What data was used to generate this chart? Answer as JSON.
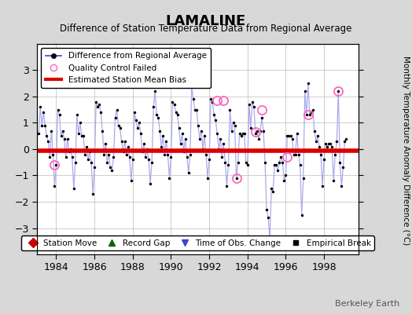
{
  "title": "LAMALINE",
  "subtitle": "Difference of Station Temperature Data from Regional Average",
  "ylabel_right": "Monthly Temperature Anomaly Difference (°C)",
  "ylim": [
    -4,
    4
  ],
  "xlim": [
    1983.0,
    1999.8
  ],
  "xticks": [
    1984,
    1986,
    1988,
    1990,
    1992,
    1994,
    1996,
    1998
  ],
  "yticks": [
    -3,
    -2,
    -1,
    0,
    1,
    2,
    3
  ],
  "bias_level": -0.05,
  "watermark": "Berkeley Earth",
  "line_color": "#4444cc",
  "line_color_light": "#aaaaee",
  "marker_color": "#000000",
  "bias_color": "#dd0000",
  "qc_color": "#ff66bb",
  "background_color": "#d8d8d8",
  "plot_background": "#ffffff",
  "grid_color": "#bbbbbb",
  "time_series": [
    [
      1983.0833,
      0.6
    ],
    [
      1983.1667,
      1.6
    ],
    [
      1983.25,
      0.9
    ],
    [
      1983.3333,
      1.4
    ],
    [
      1983.4167,
      0.9
    ],
    [
      1983.5,
      0.5
    ],
    [
      1983.5833,
      0.3
    ],
    [
      1983.6667,
      -0.3
    ],
    [
      1983.75,
      0.7
    ],
    [
      1983.8333,
      -0.2
    ],
    [
      1983.9167,
      -1.4
    ],
    [
      1984.0,
      -0.6
    ],
    [
      1984.0833,
      1.5
    ],
    [
      1984.1667,
      1.3
    ],
    [
      1984.25,
      0.5
    ],
    [
      1984.3333,
      0.7
    ],
    [
      1984.4167,
      0.4
    ],
    [
      1984.5,
      -0.3
    ],
    [
      1984.5833,
      0.4
    ],
    [
      1984.6667,
      -0.1
    ],
    [
      1984.75,
      0.0
    ],
    [
      1984.8333,
      -0.3
    ],
    [
      1984.9167,
      -1.5
    ],
    [
      1985.0,
      -0.5
    ],
    [
      1985.0833,
      1.3
    ],
    [
      1985.1667,
      0.6
    ],
    [
      1985.25,
      1.0
    ],
    [
      1985.3333,
      0.5
    ],
    [
      1985.4167,
      0.5
    ],
    [
      1985.5,
      -0.2
    ],
    [
      1985.5833,
      0.1
    ],
    [
      1985.6667,
      -0.4
    ],
    [
      1985.75,
      -0.1
    ],
    [
      1985.8333,
      -0.5
    ],
    [
      1985.9167,
      -1.7
    ],
    [
      1986.0,
      -0.7
    ],
    [
      1986.0833,
      1.8
    ],
    [
      1986.1667,
      1.6
    ],
    [
      1986.25,
      1.7
    ],
    [
      1986.3333,
      1.4
    ],
    [
      1986.4167,
      0.7
    ],
    [
      1986.5,
      -0.2
    ],
    [
      1986.5833,
      0.2
    ],
    [
      1986.6667,
      -0.5
    ],
    [
      1986.75,
      -0.2
    ],
    [
      1986.8333,
      -0.7
    ],
    [
      1986.9167,
      -0.8
    ],
    [
      1987.0,
      -0.3
    ],
    [
      1987.0833,
      1.2
    ],
    [
      1987.1667,
      1.5
    ],
    [
      1987.25,
      0.9
    ],
    [
      1987.3333,
      0.8
    ],
    [
      1987.4167,
      0.3
    ],
    [
      1987.5,
      -0.1
    ],
    [
      1987.5833,
      0.3
    ],
    [
      1987.6667,
      -0.2
    ],
    [
      1987.75,
      0.1
    ],
    [
      1987.8333,
      -0.3
    ],
    [
      1987.9167,
      -1.2
    ],
    [
      1988.0,
      -0.4
    ],
    [
      1988.0833,
      1.4
    ],
    [
      1988.1667,
      1.1
    ],
    [
      1988.25,
      0.8
    ],
    [
      1988.3333,
      1.0
    ],
    [
      1988.4167,
      0.6
    ],
    [
      1988.5,
      -0.1
    ],
    [
      1988.5833,
      0.2
    ],
    [
      1988.6667,
      -0.3
    ],
    [
      1988.75,
      0.0
    ],
    [
      1988.8333,
      -0.4
    ],
    [
      1988.9167,
      -1.3
    ],
    [
      1989.0,
      -0.5
    ],
    [
      1989.0833,
      1.6
    ],
    [
      1989.1667,
      2.2
    ],
    [
      1989.25,
      1.3
    ],
    [
      1989.3333,
      1.2
    ],
    [
      1989.4167,
      0.7
    ],
    [
      1989.5,
      0.1
    ],
    [
      1989.5833,
      0.5
    ],
    [
      1989.6667,
      -0.2
    ],
    [
      1989.75,
      0.3
    ],
    [
      1989.8333,
      -0.2
    ],
    [
      1989.9167,
      -1.1
    ],
    [
      1990.0,
      -0.3
    ],
    [
      1990.0833,
      1.8
    ],
    [
      1990.1667,
      1.7
    ],
    [
      1990.25,
      1.4
    ],
    [
      1990.3333,
      1.3
    ],
    [
      1990.4167,
      0.8
    ],
    [
      1990.5,
      0.2
    ],
    [
      1990.5833,
      0.6
    ],
    [
      1990.6667,
      -0.1
    ],
    [
      1990.75,
      0.4
    ],
    [
      1990.8333,
      -0.3
    ],
    [
      1990.9167,
      -0.9
    ],
    [
      1991.0,
      -0.2
    ],
    [
      1991.0833,
      2.4
    ],
    [
      1991.1667,
      1.9
    ],
    [
      1991.25,
      1.5
    ],
    [
      1991.3333,
      1.5
    ],
    [
      1991.4167,
      0.9
    ],
    [
      1991.5,
      0.4
    ],
    [
      1991.5833,
      0.7
    ],
    [
      1991.6667,
      0.0
    ],
    [
      1991.75,
      0.5
    ],
    [
      1991.8333,
      -0.2
    ],
    [
      1991.9167,
      -1.1
    ],
    [
      1992.0,
      -0.4
    ],
    [
      1992.0833,
      1.9
    ],
    [
      1992.1667,
      1.8
    ],
    [
      1992.25,
      1.3
    ],
    [
      1992.3333,
      1.1
    ],
    [
      1992.4167,
      0.6
    ],
    [
      1992.5,
      0.0
    ],
    [
      1992.5833,
      0.4
    ],
    [
      1992.6667,
      -0.3
    ],
    [
      1992.75,
      0.2
    ],
    [
      1992.8333,
      -0.5
    ],
    [
      1992.9167,
      -1.4
    ],
    [
      1993.0,
      -0.6
    ],
    [
      1993.0833,
      1.5
    ],
    [
      1993.1667,
      0.7
    ],
    [
      1993.25,
      1.0
    ],
    [
      1993.3333,
      0.9
    ],
    [
      1993.4167,
      -1.1
    ],
    [
      1993.5,
      -0.5
    ],
    [
      1993.5833,
      0.6
    ],
    [
      1993.6667,
      0.5
    ],
    [
      1993.75,
      0.6
    ],
    [
      1993.8333,
      0.6
    ],
    [
      1993.9167,
      -0.5
    ],
    [
      1994.0,
      -0.6
    ],
    [
      1994.0833,
      1.7
    ],
    [
      1994.1667,
      0.8
    ],
    [
      1994.25,
      1.8
    ],
    [
      1994.3333,
      1.6
    ],
    [
      1994.4167,
      0.6
    ],
    [
      1994.5,
      0.7
    ],
    [
      1994.5833,
      0.4
    ],
    [
      1994.6667,
      0.7
    ],
    [
      1994.75,
      1.2
    ],
    [
      1994.8333,
      0.7
    ],
    [
      1994.9167,
      -0.5
    ],
    [
      1995.0,
      -2.3
    ],
    [
      1995.0833,
      -2.6
    ],
    [
      1995.1667,
      -3.4
    ],
    [
      1995.25,
      -1.5
    ],
    [
      1995.3333,
      -1.6
    ],
    [
      1995.4167,
      -0.6
    ],
    [
      1995.5,
      -0.6
    ],
    [
      1995.5833,
      -0.8
    ],
    [
      1995.6667,
      -0.5
    ],
    [
      1995.75,
      -0.3
    ],
    [
      1995.8333,
      -0.5
    ],
    [
      1995.9167,
      -1.2
    ],
    [
      1996.0,
      -1.0
    ],
    [
      1996.0833,
      0.5
    ],
    [
      1996.1667,
      0.5
    ],
    [
      1996.25,
      0.5
    ],
    [
      1996.3333,
      0.4
    ],
    [
      1996.4167,
      -0.2
    ],
    [
      1996.5,
      -0.2
    ],
    [
      1996.5833,
      0.6
    ],
    [
      1996.6667,
      -0.2
    ],
    [
      1996.75,
      -0.6
    ],
    [
      1996.8333,
      -2.5
    ],
    [
      1996.9167,
      -1.1
    ],
    [
      1997.0,
      2.2
    ],
    [
      1997.0833,
      1.3
    ],
    [
      1997.1667,
      2.5
    ],
    [
      1997.25,
      1.3
    ],
    [
      1997.3333,
      1.4
    ],
    [
      1997.4167,
      1.5
    ],
    [
      1997.5,
      0.7
    ],
    [
      1997.5833,
      0.3
    ],
    [
      1997.6667,
      0.5
    ],
    [
      1997.75,
      0.1
    ],
    [
      1997.8333,
      -0.2
    ],
    [
      1997.9167,
      -1.4
    ],
    [
      1998.0,
      -0.4
    ],
    [
      1998.0833,
      0.2
    ],
    [
      1998.1667,
      0.1
    ],
    [
      1998.25,
      0.2
    ],
    [
      1998.3333,
      0.2
    ],
    [
      1998.4167,
      0.1
    ],
    [
      1998.5,
      -1.2
    ],
    [
      1998.5833,
      -0.2
    ],
    [
      1998.6667,
      0.3
    ],
    [
      1998.75,
      2.2
    ],
    [
      1998.8333,
      -0.5
    ],
    [
      1998.9167,
      -1.4
    ],
    [
      1999.0,
      -0.7
    ],
    [
      1999.0833,
      0.3
    ],
    [
      1999.1667,
      0.4
    ]
  ],
  "qc_failed": [
    [
      1983.9167,
      -0.6
    ],
    [
      1992.4167,
      1.85
    ],
    [
      1992.75,
      1.85
    ],
    [
      1994.4167,
      0.65
    ],
    [
      1993.4167,
      -1.1
    ],
    [
      1994.75,
      1.5
    ],
    [
      1996.0833,
      -0.3
    ],
    [
      1997.1667,
      1.3
    ],
    [
      1998.75,
      2.2
    ]
  ],
  "time_of_obs_change": [
    [
      1995.0,
      -3.3
    ]
  ]
}
